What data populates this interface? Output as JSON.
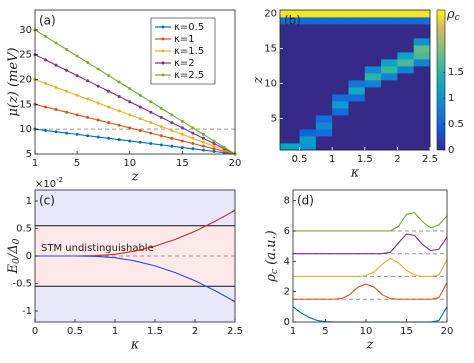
{
  "chart_data": [
    {
      "type": "line",
      "panel_label": "(a)",
      "xlabel": "z",
      "ylabel": [
        "μ(z) (meV)"
      ],
      "x": [
        1,
        2,
        3,
        4,
        5,
        6,
        7,
        8,
        9,
        10,
        11,
        12,
        13,
        14,
        15,
        16,
        17,
        18,
        19,
        20
      ],
      "xlim": [
        1,
        20
      ],
      "ylim": [
        5,
        34
      ],
      "xticks": [
        1,
        5,
        10,
        15,
        20
      ],
      "yticks": [
        5,
        10,
        15,
        20,
        25,
        30
      ],
      "markers": true,
      "legend": "upper right",
      "reference_lines": [
        10
      ],
      "series": [
        {
          "name": "κ=0.5",
          "color": "#0072bd",
          "values": [
            10,
            9.74,
            9.47,
            9.21,
            8.95,
            8.68,
            8.42,
            8.16,
            7.89,
            7.63,
            7.37,
            7.11,
            6.84,
            6.58,
            6.32,
            6.05,
            5.79,
            5.53,
            5.26,
            5
          ]
        },
        {
          "name": "κ=1",
          "color": "#d95319",
          "values": [
            15,
            14.47,
            13.95,
            13.42,
            12.89,
            12.37,
            11.84,
            11.32,
            10.79,
            10.26,
            9.74,
            9.21,
            8.68,
            8.16,
            7.63,
            7.11,
            6.58,
            6.05,
            5.53,
            5
          ]
        },
        {
          "name": "κ=1.5",
          "color": "#edb120",
          "values": [
            20,
            19.21,
            18.42,
            17.63,
            16.84,
            16.05,
            15.26,
            14.47,
            13.68,
            12.89,
            12.11,
            11.32,
            10.53,
            9.74,
            8.95,
            8.16,
            7.37,
            6.58,
            5.79,
            5
          ]
        },
        {
          "name": "κ=2",
          "color": "#7e2f8e",
          "values": [
            25,
            23.95,
            22.89,
            21.84,
            20.79,
            19.74,
            18.68,
            17.63,
            16.58,
            15.53,
            14.47,
            13.42,
            12.37,
            11.32,
            10.26,
            9.21,
            8.16,
            7.11,
            6.05,
            5
          ]
        },
        {
          "name": "κ=2.5",
          "color": "#77ac30",
          "values": [
            30,
            28.68,
            27.37,
            26.05,
            24.74,
            23.42,
            22.11,
            20.79,
            19.47,
            18.16,
            16.84,
            15.53,
            14.21,
            12.89,
            11.58,
            10.26,
            8.95,
            7.63,
            6.32,
            5
          ]
        }
      ]
    },
    {
      "type": "heatmap",
      "panel_label": "(b)",
      "panel_label_color": "#ffffff",
      "xlabel": "κ",
      "ylabel": [
        "z"
      ],
      "x": [
        0.125,
        0.375,
        0.625,
        0.875,
        1.125,
        1.375,
        1.625,
        1.875,
        2.125,
        2.375
      ],
      "y": [
        1,
        2,
        3,
        4,
        5,
        6,
        7,
        8,
        9,
        10,
        11,
        12,
        13,
        14,
        15,
        16,
        17,
        18,
        19,
        20
      ],
      "xlim": [
        0.2,
        2.5
      ],
      "ylim": [
        0.5,
        20.5
      ],
      "xticks": [
        0.5,
        1,
        1.5,
        2,
        2.5
      ],
      "yticks": [
        5,
        10,
        15,
        20
      ],
      "colormap": "parula",
      "colorbar": {
        "label": [
          "ρ",
          "c"
        ],
        "clim": [
          0,
          2.7
        ],
        "ticks": [
          0,
          0.5,
          1,
          1.5
        ]
      },
      "values": [
        [
          1.2,
          1.2,
          1.0,
          0,
          0,
          0,
          0,
          0,
          0,
          0
        ],
        [
          0,
          0,
          1.1,
          0,
          0,
          0,
          0,
          0,
          0,
          0
        ],
        [
          0,
          0,
          0.5,
          0.6,
          0,
          0,
          0,
          0,
          0,
          0
        ],
        [
          0,
          0,
          0,
          0.9,
          0,
          0,
          0,
          0,
          0,
          0
        ],
        [
          0,
          0,
          0,
          0.6,
          0,
          0,
          0,
          0,
          0,
          0
        ],
        [
          0,
          0,
          0,
          0,
          0.6,
          0,
          0,
          0,
          0,
          0
        ],
        [
          0,
          0,
          0,
          0,
          1.1,
          0,
          0,
          0,
          0,
          0
        ],
        [
          0,
          0,
          0,
          0,
          0.6,
          0.6,
          0,
          0,
          0,
          0
        ],
        [
          0,
          0,
          0,
          0,
          0,
          1.3,
          0,
          0,
          0,
          0
        ],
        [
          0,
          0,
          0,
          0,
          0,
          0.7,
          0.8,
          0,
          0,
          0
        ],
        [
          0,
          0,
          0,
          0,
          0,
          0,
          1.5,
          0.8,
          0,
          0
        ],
        [
          0,
          0,
          0,
          0,
          0,
          0,
          0.9,
          1.6,
          0.8,
          0
        ],
        [
          0,
          0,
          0,
          0,
          0,
          0,
          0,
          1.2,
          1.7,
          0.8
        ],
        [
          0,
          0,
          0,
          0,
          0,
          0,
          0,
          0,
          1.2,
          1.7
        ],
        [
          0,
          0,
          0,
          0,
          0,
          0,
          0,
          0,
          0,
          1.8
        ],
        [
          0,
          0,
          0,
          0,
          0,
          0,
          0,
          0,
          0,
          1.0
        ],
        [
          0,
          0,
          0,
          0,
          0,
          0,
          0,
          0,
          0,
          0
        ],
        [
          0,
          0,
          0,
          0,
          0,
          0,
          0,
          0,
          0,
          0
        ],
        [
          0.6,
          0.6,
          0.6,
          0.6,
          0.6,
          0.6,
          0.6,
          0.6,
          0.6,
          0.6
        ],
        [
          2.6,
          2.6,
          2.6,
          2.6,
          2.6,
          2.6,
          2.6,
          2.6,
          2.6,
          2.6
        ]
      ]
    },
    {
      "type": "line",
      "panel_label": "(c)",
      "xlabel": "κ",
      "ylabel": [
        "E",
        "0",
        "/Δ",
        "0"
      ],
      "y_multiplier": [
        "×10",
        "-2"
      ],
      "x": [
        0,
        0.25,
        0.5,
        0.75,
        1,
        1.25,
        1.5,
        1.75,
        2,
        2.25,
        2.5
      ],
      "xlim": [
        0,
        2.5
      ],
      "ylim": [
        -1.2,
        1.2
      ],
      "xticks": [
        0,
        0.5,
        1,
        1.5,
        2,
        2.5
      ],
      "yticks": [
        -1,
        -0.5,
        0,
        0.5,
        1
      ],
      "background": "#e8e8fa",
      "band": {
        "range": [
          -0.55,
          0.55
        ],
        "color": "#fde8ea"
      },
      "annotation": "STM undistinguishable",
      "reference_lines": [
        0
      ],
      "series": [
        {
          "color": "#d62728",
          "values": [
            0,
            0,
            0,
            0.005,
            0.03,
            0.09,
            0.18,
            0.3,
            0.45,
            0.63,
            0.83
          ]
        },
        {
          "color": "#2a4bd7",
          "values": [
            0,
            0,
            0,
            -0.005,
            -0.03,
            -0.09,
            -0.18,
            -0.3,
            -0.45,
            -0.63,
            -0.83
          ]
        }
      ]
    },
    {
      "type": "line",
      "panel_label": "(d)",
      "xlabel": "z",
      "ylabel": [
        "ρ",
        "c",
        " (a.u.)"
      ],
      "x": [
        1,
        2,
        3,
        4,
        5,
        6,
        7,
        8,
        9,
        10,
        11,
        12,
        13,
        14,
        15,
        16,
        17,
        18,
        19,
        20
      ],
      "xlim": [
        1,
        20
      ],
      "ylim": [
        0,
        8.7
      ],
      "xticks": [
        1,
        5,
        10,
        15,
        20
      ],
      "yticks": [
        0,
        2,
        4,
        6,
        8
      ],
      "reference_lines": [
        1.5,
        3,
        4.5,
        6
      ],
      "series": [
        {
          "color": "#0072bd",
          "values": [
            1.0,
            0.6,
            0.3,
            0.1,
            0.02,
            0,
            0,
            0,
            0,
            0,
            0,
            0,
            0,
            0,
            0,
            0,
            0,
            0,
            0.1,
            1.0
          ]
        },
        {
          "color": "#d95319",
          "values": [
            1.5,
            1.5,
            1.5,
            1.5,
            1.5,
            1.5,
            1.55,
            1.8,
            2.3,
            2.5,
            2.3,
            1.8,
            1.55,
            1.5,
            1.5,
            1.5,
            1.5,
            1.5,
            1.6,
            2.6
          ]
        },
        {
          "color": "#edb120",
          "values": [
            3,
            3,
            3,
            3,
            3,
            3,
            3,
            3,
            3,
            3.05,
            3.3,
            3.8,
            4.2,
            3.9,
            3.4,
            3.1,
            3,
            3,
            3.1,
            4.1
          ]
        },
        {
          "color": "#7e2f8e",
          "values": [
            4.5,
            4.5,
            4.5,
            4.5,
            4.5,
            4.5,
            4.5,
            4.5,
            4.5,
            4.5,
            4.5,
            4.5,
            4.6,
            5.2,
            5.8,
            5.7,
            5.1,
            4.7,
            4.8,
            5.6
          ]
        },
        {
          "color": "#77ac30",
          "values": [
            6,
            6,
            6,
            6,
            6,
            6,
            6,
            6,
            6,
            6,
            6,
            6,
            6,
            6.3,
            7.1,
            7.2,
            6.6,
            6.2,
            6.4,
            7.0
          ]
        }
      ]
    }
  ]
}
